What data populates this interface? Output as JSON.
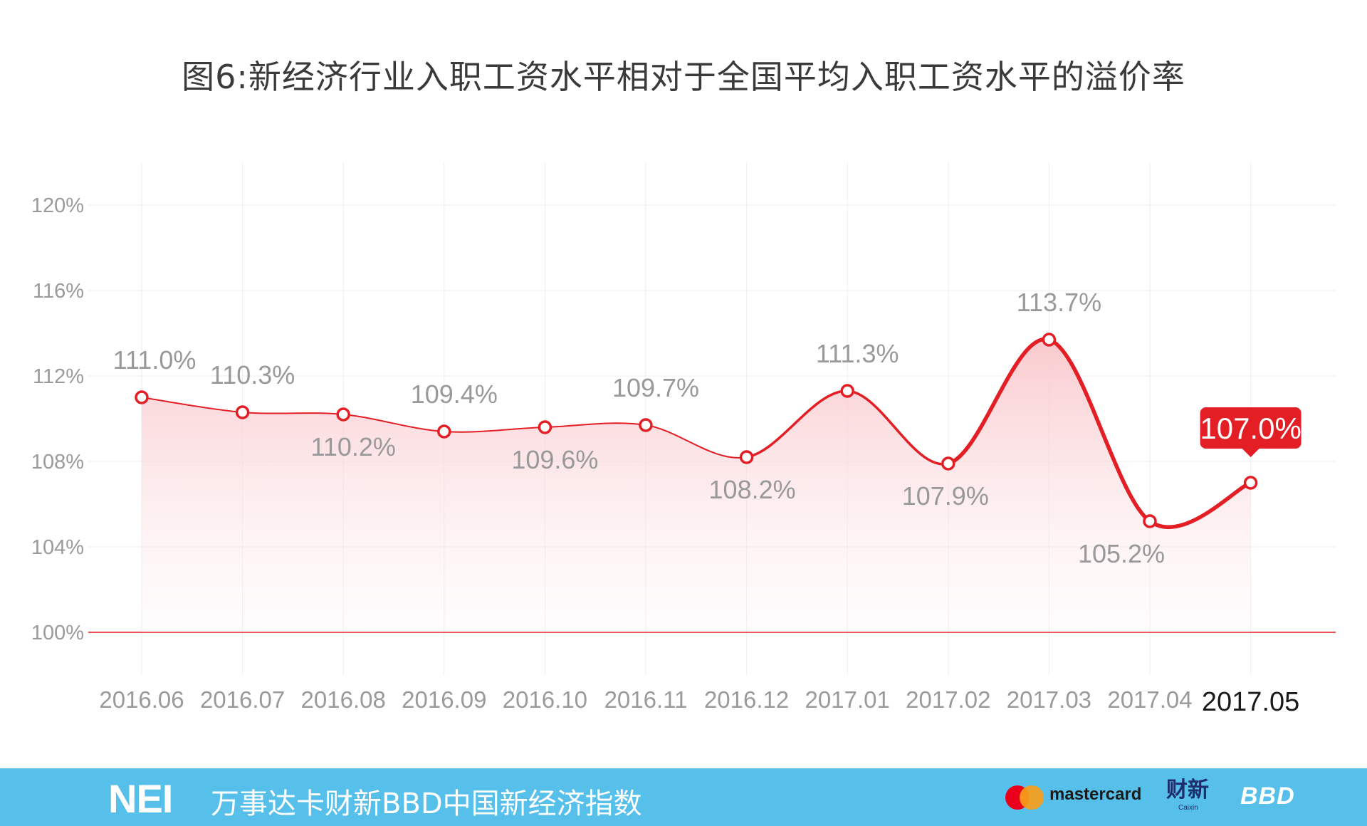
{
  "chart_data": {
    "type": "line",
    "title": "图6:新经济行业入职工资水平相对于全国平均入职工资水平的溢价率",
    "categories": [
      "2016.06",
      "2016.07",
      "2016.08",
      "2016.09",
      "2016.10",
      "2016.11",
      "2016.12",
      "2017.01",
      "2017.02",
      "2017.03",
      "2017.04",
      "2017.05"
    ],
    "values": [
      111.0,
      110.3,
      110.2,
      109.4,
      109.6,
      109.7,
      108.2,
      111.3,
      107.9,
      113.7,
      105.2,
      107.0
    ],
    "data_labels": [
      "111.0%",
      "110.3%",
      "110.2%",
      "109.4%",
      "109.6%",
      "109.7%",
      "108.2%",
      "111.3%",
      "107.9%",
      "113.7%",
      "105.2%",
      "107.0%"
    ],
    "label_position": [
      "above",
      "above",
      "below",
      "above",
      "below",
      "above",
      "below",
      "above",
      "below",
      "above",
      "below",
      "above"
    ],
    "highlight_index": 11,
    "yticks": [
      100,
      104,
      108,
      112,
      116,
      120
    ],
    "ytick_labels": [
      "100%",
      "104%",
      "108%",
      "112%",
      "116%",
      "120%"
    ],
    "ylim": [
      100,
      120
    ],
    "xlabel": "",
    "ylabel": "",
    "grid": true,
    "colors": {
      "line": "#e31e24",
      "baseline": "#e31e24",
      "area_top": "#f9c4c8",
      "highlight_bg": "#e31e24",
      "grid": "#eeeeee"
    }
  },
  "footer": {
    "logo": "NEI",
    "text": "万事达卡财新BBD中国新经济指数",
    "mastercard_text": "mastercard",
    "caixin_logo": "财新",
    "caixin_sub": "Caixin",
    "bbd_logo": "BBD",
    "background": "#57c0ea"
  }
}
